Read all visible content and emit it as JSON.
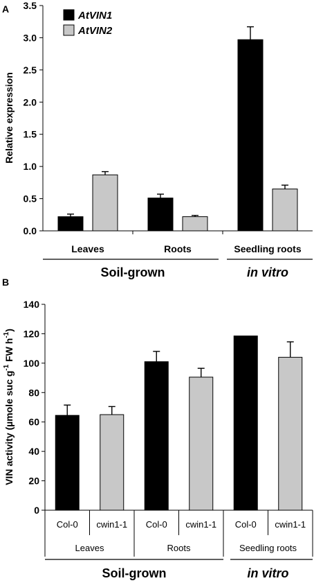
{
  "chart_data": [
    {
      "type": "bar",
      "panel_label": "A",
      "ylabel": "Relative expression",
      "ylim": [
        0,
        3.5
      ],
      "yticks": [
        "0.0",
        "0.5",
        "1.0",
        "1.5",
        "2.0",
        "2.5",
        "3.0",
        "3.5"
      ],
      "categories": [
        "Leaves",
        "Roots",
        "Seedling roots"
      ],
      "groups": [
        {
          "label": "Soil-grown",
          "categories": [
            "Leaves",
            "Roots"
          ]
        },
        {
          "label": "in vitro",
          "categories": [
            "Seedling roots"
          ]
        }
      ],
      "legend_position": "top-left",
      "series": [
        {
          "name": "AtVIN1",
          "color": "#000000",
          "values": [
            0.22,
            0.51,
            2.97
          ],
          "errors": [
            0.04,
            0.06,
            0.2
          ]
        },
        {
          "name": "AtVIN2",
          "color": "#c8c8c8",
          "values": [
            0.87,
            0.22,
            0.65
          ],
          "errors": [
            0.05,
            0.02,
            0.06
          ]
        }
      ]
    },
    {
      "type": "bar",
      "panel_label": "B",
      "ylabel": "VIN activity (µmole suc g⁻¹ FW h⁻¹)",
      "ylim": [
        0,
        140
      ],
      "yticks": [
        "0",
        "20",
        "40",
        "60",
        "80",
        "100",
        "120",
        "140"
      ],
      "categories": [
        "Col-0",
        "cwin1-1",
        "Col-0",
        "cwin1-1",
        "Col-0",
        "cwin1-1"
      ],
      "tissues": [
        "Leaves",
        "Roots",
        "Seedling roots"
      ],
      "groups": [
        {
          "label": "Soil-grown",
          "tissues": [
            "Leaves",
            "Roots"
          ]
        },
        {
          "label": "in vitro",
          "tissues": [
            "Seedling roots"
          ]
        }
      ],
      "values": [
        64.5,
        65,
        101,
        90.5,
        118.5,
        104
      ],
      "errors": [
        7,
        5.5,
        7,
        6,
        0,
        10.5
      ],
      "colors": [
        "#000000",
        "#c8c8c8",
        "#000000",
        "#c8c8c8",
        "#000000",
        "#c8c8c8"
      ]
    }
  ]
}
